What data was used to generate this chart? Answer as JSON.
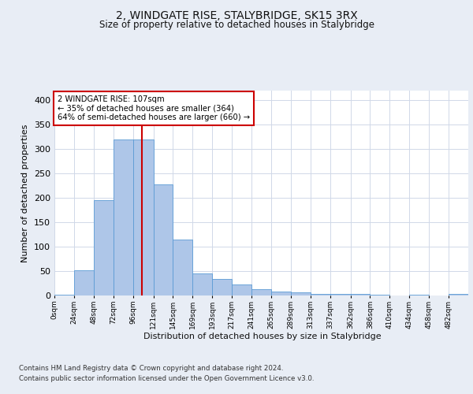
{
  "title": "2, WINDGATE RISE, STALYBRIDGE, SK15 3RX",
  "subtitle": "Size of property relative to detached houses in Stalybridge",
  "xlabel": "Distribution of detached houses by size in Stalybridge",
  "ylabel": "Number of detached properties",
  "bin_labels": [
    "0sqm",
    "24sqm",
    "48sqm",
    "72sqm",
    "96sqm",
    "121sqm",
    "145sqm",
    "169sqm",
    "193sqm",
    "217sqm",
    "241sqm",
    "265sqm",
    "289sqm",
    "313sqm",
    "337sqm",
    "362sqm",
    "386sqm",
    "410sqm",
    "434sqm",
    "458sqm",
    "482sqm"
  ],
  "bin_edges": [
    0,
    24,
    48,
    72,
    96,
    121,
    145,
    169,
    193,
    217,
    241,
    265,
    289,
    313,
    337,
    362,
    386,
    410,
    434,
    458,
    482,
    506
  ],
  "bar_heights": [
    2,
    51,
    195,
    320,
    320,
    228,
    114,
    46,
    34,
    23,
    13,
    8,
    6,
    4,
    3,
    3,
    1,
    0,
    1,
    0,
    4
  ],
  "bar_color": "#aec6e8",
  "bar_edge_color": "#5b9bd5",
  "property_size": 107,
  "red_line_color": "#cc0000",
  "annotation_line1": "2 WINDGATE RISE: 107sqm",
  "annotation_line2": "← 35% of detached houses are smaller (364)",
  "annotation_line3": "64% of semi-detached houses are larger (660) →",
  "annotation_box_color": "#ffffff",
  "annotation_box_edge_color": "#cc0000",
  "ylim": [
    0,
    420
  ],
  "yticks": [
    0,
    50,
    100,
    150,
    200,
    250,
    300,
    350,
    400
  ],
  "grid_color": "#d0d8e8",
  "background_color": "#e8edf5",
  "plot_background": "#ffffff",
  "footer_line1": "Contains HM Land Registry data © Crown copyright and database right 2024.",
  "footer_line2": "Contains public sector information licensed under the Open Government Licence v3.0."
}
